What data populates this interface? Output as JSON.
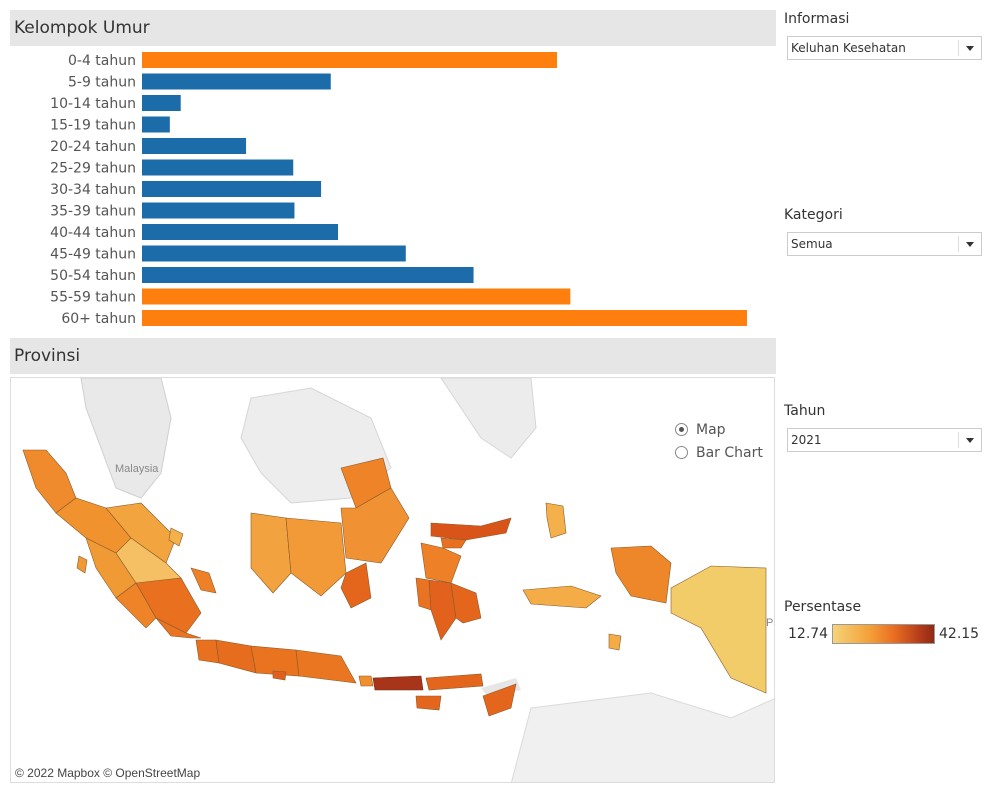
{
  "age_section": {
    "title": "Kelompok Umur"
  },
  "province_section": {
    "title": "Provinsi"
  },
  "chart_data": {
    "type": "bar",
    "orientation": "horizontal",
    "categories": [
      "0-4 tahun",
      "5-9 tahun",
      "10-14 tahun",
      "15-19 tahun",
      "20-24 tahun",
      "25-29 tahun",
      "30-34 tahun",
      "35-39 tahun",
      "40-44 tahun",
      "45-49 tahun",
      "50-54 tahun",
      "55-59 tahun",
      "60+ tahun"
    ],
    "values": [
      34.3,
      15.6,
      3.2,
      2.3,
      8.6,
      12.5,
      14.8,
      12.6,
      16.2,
      21.8,
      27.4,
      35.4,
      50.0
    ],
    "highlighted": [
      true,
      false,
      false,
      false,
      false,
      false,
      false,
      false,
      false,
      false,
      false,
      true,
      true
    ],
    "colors": {
      "normal": "#1b6ca8",
      "highlight": "#ff7f0e"
    },
    "xlim": [
      0,
      50
    ]
  },
  "view_toggle": {
    "options": [
      {
        "label": "Map",
        "checked": true
      },
      {
        "label": "Bar Chart",
        "checked": false
      }
    ]
  },
  "map": {
    "attribution": "© 2022 Mapbox © OpenStreetMap",
    "basemap_labels": [
      "Malaysia",
      "Pa"
    ]
  },
  "filters": {
    "informasi": {
      "title": "Informasi",
      "value": "Keluhan Kesehatan"
    },
    "kategori": {
      "title": "Kategori",
      "value": "Semua"
    },
    "tahun": {
      "title": "Tahun",
      "value": "2021"
    }
  },
  "legend": {
    "title": "Persentase",
    "min": "12.74",
    "max": "42.15",
    "colors": [
      "#f5d37a",
      "#f4a23a",
      "#ea6f21",
      "#b73d1b",
      "#8f2a14"
    ]
  }
}
